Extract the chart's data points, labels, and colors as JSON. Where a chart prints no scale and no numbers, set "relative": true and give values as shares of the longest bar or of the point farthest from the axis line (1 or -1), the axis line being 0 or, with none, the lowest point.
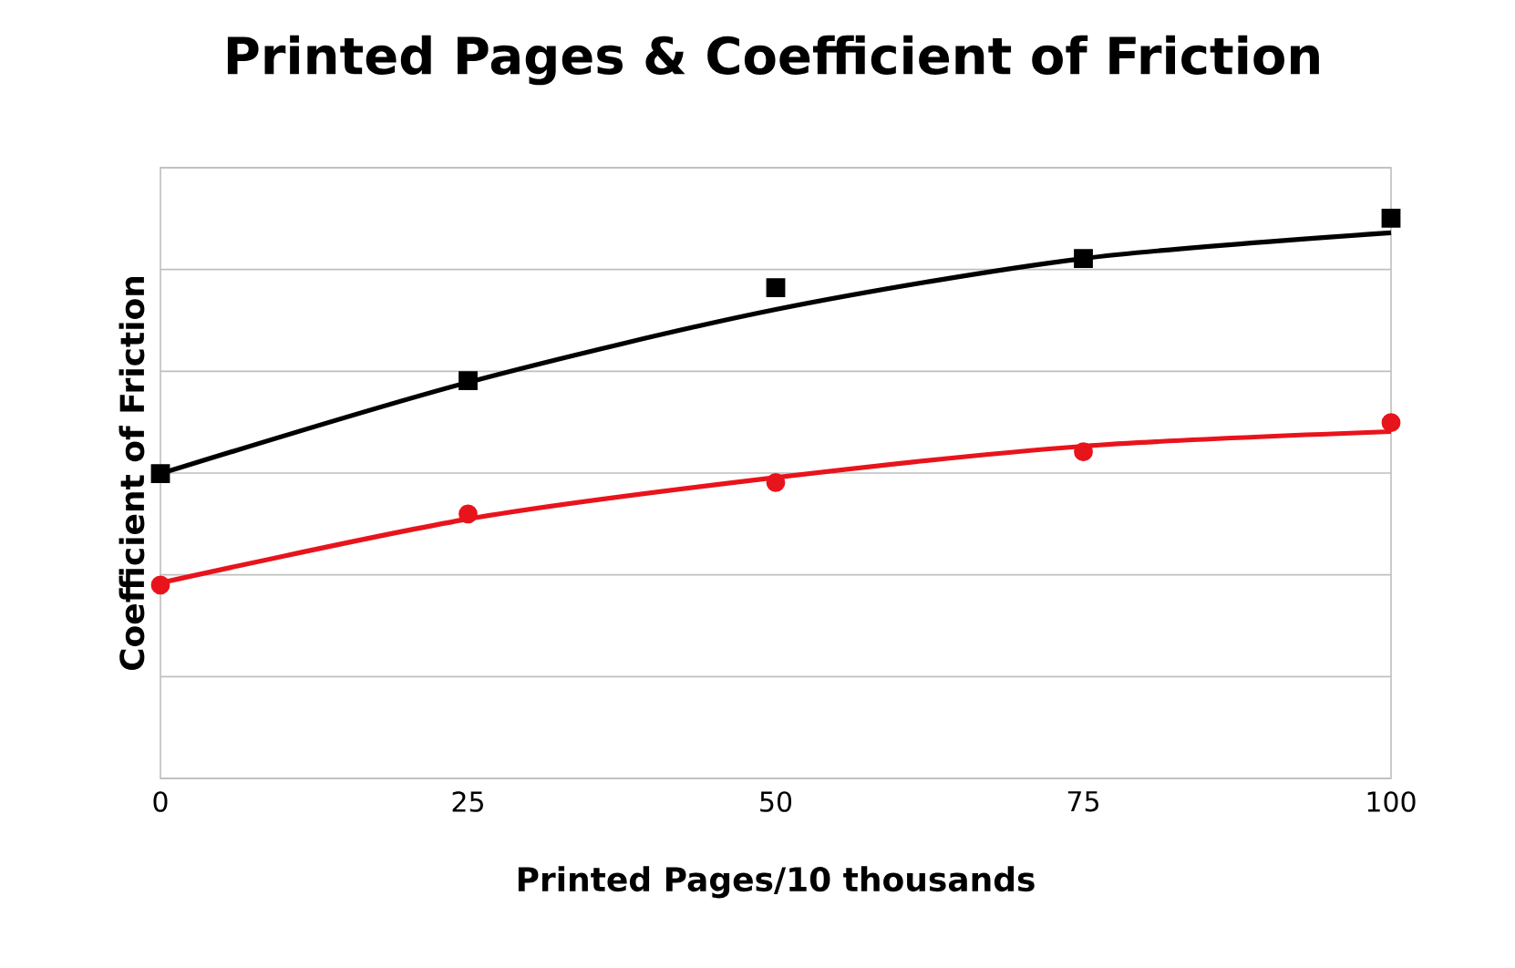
{
  "chart_data": {
    "type": "scatter",
    "title": "Printed Pages & Coefficient of Friction",
    "xlabel": "Printed Pages/10 thousands",
    "ylabel": "Coefficient of Friction",
    "relative": true,
    "xlim": [
      0,
      100
    ],
    "xticks": [
      0,
      25,
      50,
      75,
      100
    ],
    "grid": "y",
    "series": [
      {
        "color": "#000000",
        "marker": "square",
        "x": [
          0,
          25,
          50,
          75,
          100
        ],
        "values": [
          0.544,
          0.71,
          0.876,
          0.928,
          1
        ]
      },
      {
        "color": "#e8141c",
        "marker": "circle",
        "x": [
          0,
          25,
          50,
          75,
          100
        ],
        "values": [
          0.345,
          0.472,
          0.528,
          0.583,
          0.635
        ]
      },
      {
        "type": "line",
        "color": "#000000",
        "marker": "none",
        "x": [
          0,
          25,
          50,
          75,
          100
        ],
        "values": [
          0.544,
          0.707,
          0.837,
          0.928,
          0.974
        ]
      },
      {
        "type": "line",
        "color": "#e8141c",
        "marker": "none",
        "x": [
          0,
          25,
          50,
          75,
          100
        ],
        "values": [
          0.349,
          0.463,
          0.537,
          0.593,
          0.619
        ]
      }
    ]
  }
}
